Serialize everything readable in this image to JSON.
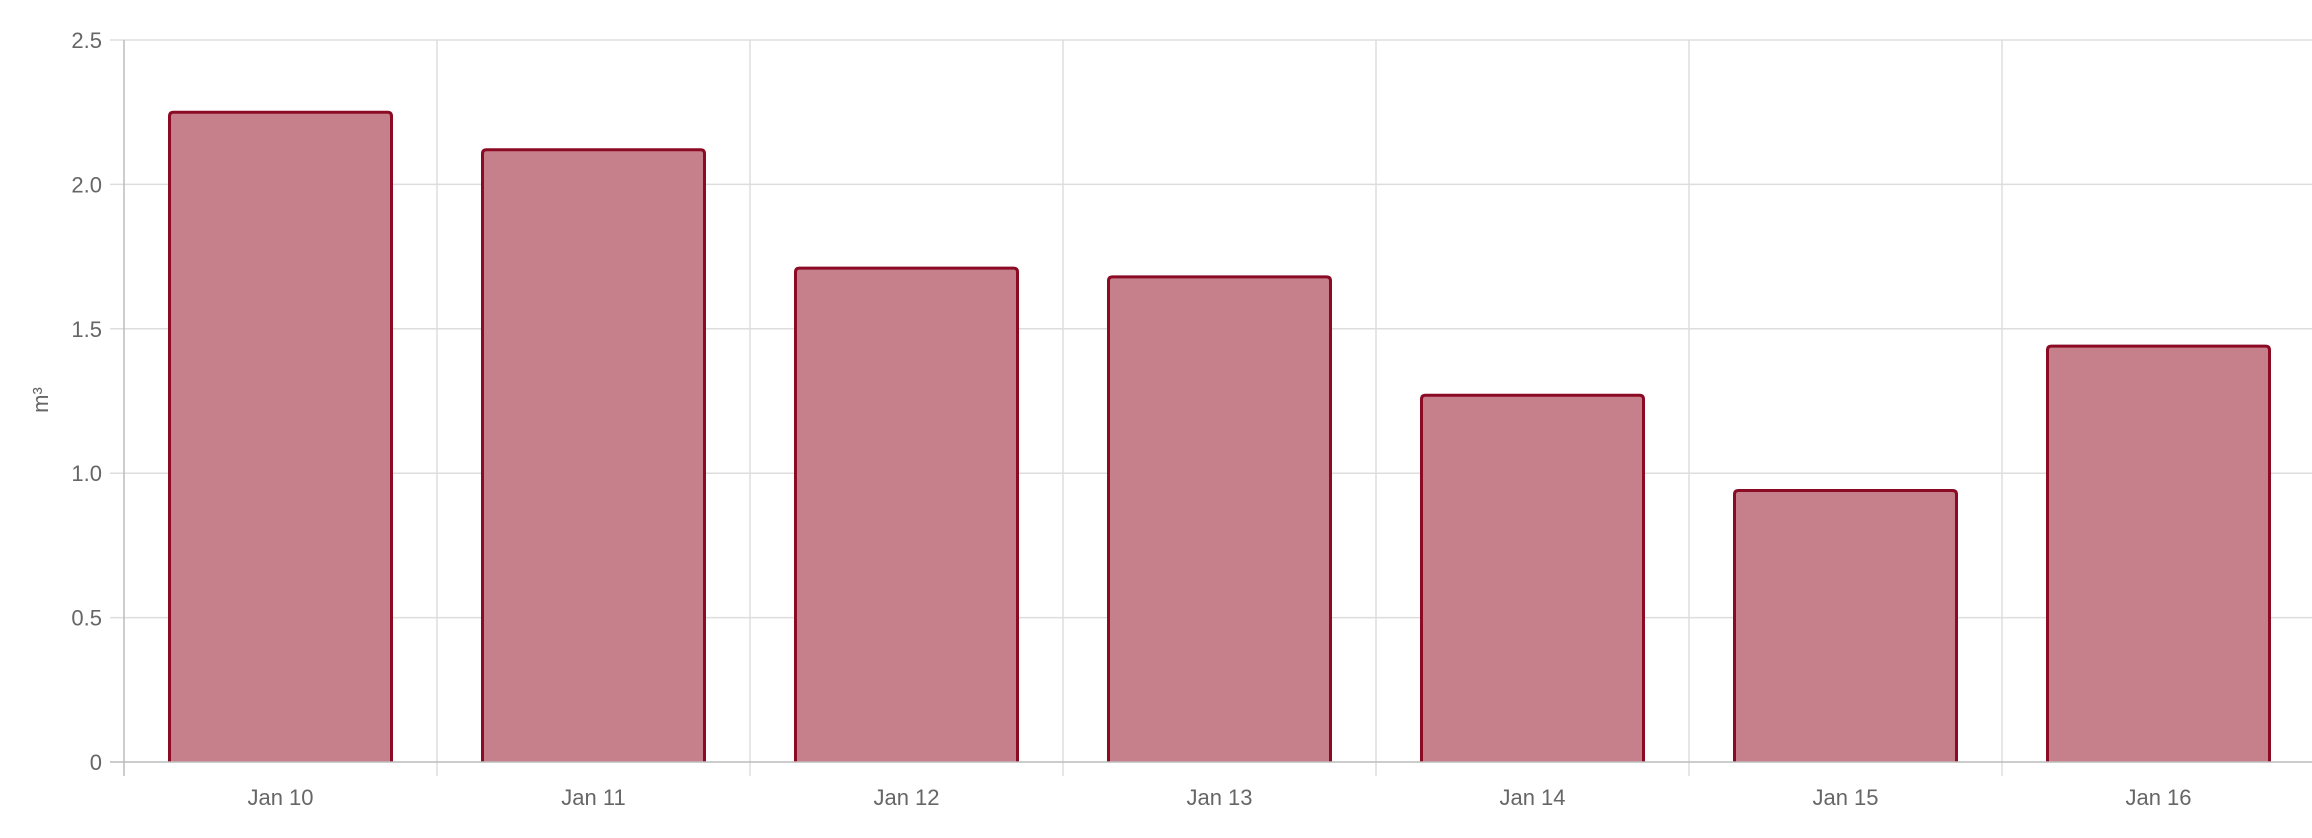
{
  "chart_data": {
    "type": "bar",
    "categories": [
      "Jan 10",
      "Jan 11",
      "Jan 12",
      "Jan 13",
      "Jan 14",
      "Jan 15",
      "Jan 16"
    ],
    "series": [
      {
        "values": [
          2.25,
          2.12,
          1.71,
          1.68,
          1.27,
          0.94,
          1.44
        ]
      }
    ],
    "title": "",
    "xlabel": "",
    "ylabel": "m³",
    "ylim": [
      0,
      2.5
    ],
    "yticks": [
      0,
      0.5,
      1.0,
      1.5,
      2.0,
      2.5
    ],
    "ytick_labels": [
      "0",
      "0.5",
      "1.0",
      "1.5",
      "2.0",
      "2.5"
    ],
    "grid": true,
    "legend": "none",
    "colors": {
      "bar_fill": "#c6808c",
      "bar_border": "#8b0a24",
      "grid": "#dddddd",
      "axis": "#bbbbbb",
      "text": "#666666"
    }
  }
}
